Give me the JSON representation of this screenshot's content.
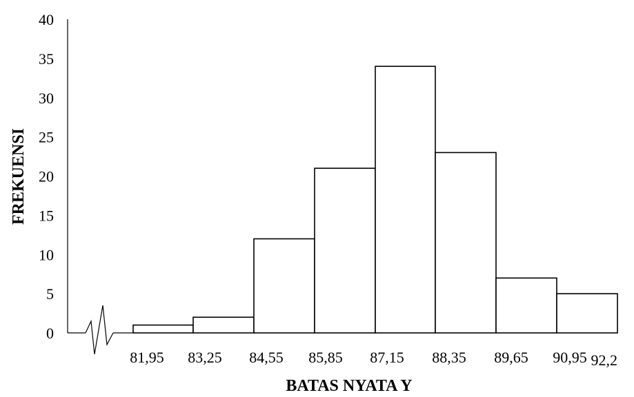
{
  "chart_data": {
    "type": "bar",
    "xlabel": "BATAS NYATA Y",
    "ylabel": "FREKUENSI",
    "ylim": [
      0,
      40
    ],
    "yticks": [
      "0",
      "5",
      "10",
      "15",
      "20",
      "25",
      "30",
      "35",
      "40"
    ],
    "x_tick_labels": [
      "81,95",
      "83,25",
      "84,55",
      "85,85",
      "87,15",
      "88,35",
      "89,65",
      "90,95",
      "92,2"
    ],
    "bars": [
      {
        "from": "81,95",
        "to": "83,25",
        "value": 1
      },
      {
        "from": "83,25",
        "to": "84,55",
        "value": 2
      },
      {
        "from": "84,55",
        "to": "85,85",
        "value": 12
      },
      {
        "from": "85,85",
        "to": "87,15",
        "value": 21
      },
      {
        "from": "87,15",
        "to": "88,35",
        "value": 34
      },
      {
        "from": "88,35",
        "to": "89,65",
        "value": 23
      },
      {
        "from": "89,65",
        "to": "90,95",
        "value": 7
      },
      {
        "from": "90,95",
        "to": "92,2",
        "value": 5
      }
    ],
    "axis_break": true,
    "grid": false,
    "legend": "none"
  }
}
